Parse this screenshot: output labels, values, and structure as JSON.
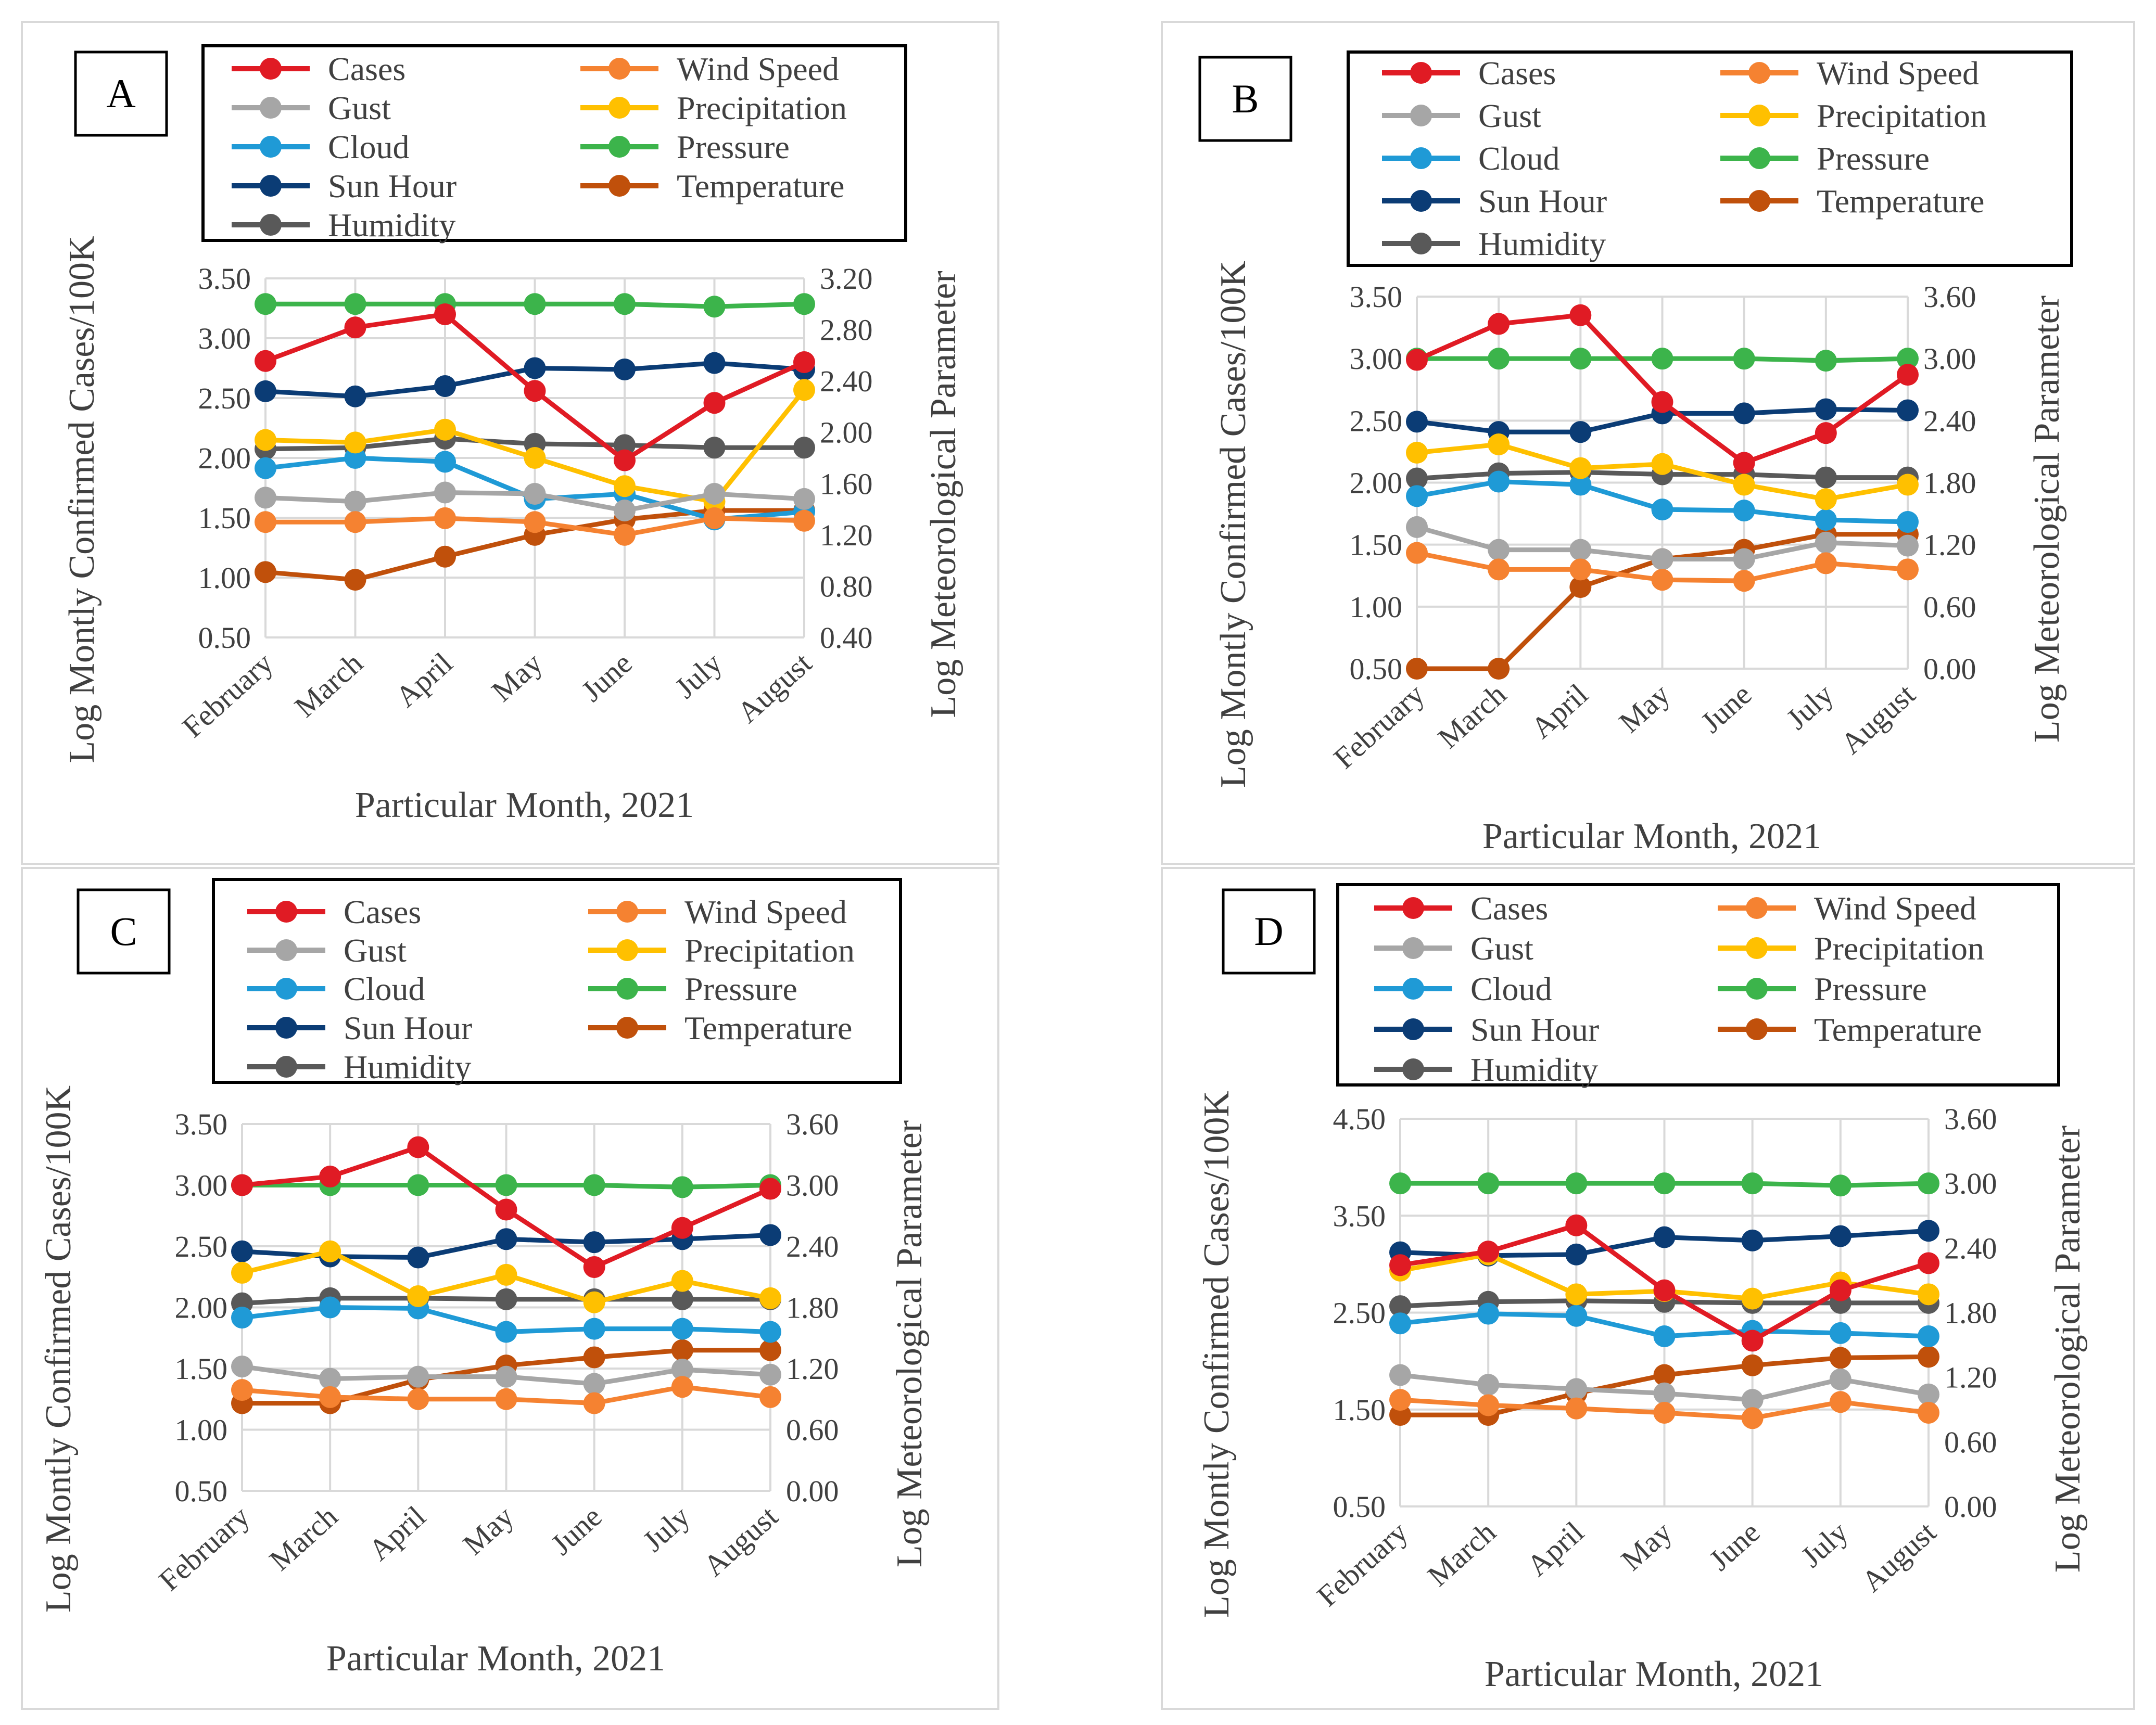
{
  "figure": {
    "panel_labels": [
      "A",
      "B",
      "C",
      "D"
    ]
  },
  "colors": {
    "Cases": "#e01b24",
    "Wind Speed": "#f58231",
    "Gust": "#a6a6a6",
    "Precipitation": "#ffc000",
    "Cloud": "#1f9ad6",
    "Pressure": "#3cb44b",
    "Sun Hour": "#0b3c75",
    "Temperature": "#c0500b",
    "Humidity": "#595959"
  },
  "chart_data": [
    {
      "panel": "A",
      "type": "line",
      "categories": [
        "February",
        "March",
        "April",
        "May",
        "June",
        "July",
        "August"
      ],
      "xlabel": "Particular Month, 2021",
      "ylabel_left": "Log Montly Confirmed Cases/100K",
      "ylabel_right": "Log Meteorological Parameter",
      "ylim_left": [
        0.5,
        3.5
      ],
      "yticks_left": [
        "0.50",
        "1.00",
        "1.50",
        "2.00",
        "2.50",
        "3.00",
        "3.50"
      ],
      "ylim_right": [
        0.4,
        3.2
      ],
      "yticks_right": [
        "0.40",
        "0.80",
        "1.20",
        "1.60",
        "2.00",
        "2.40",
        "2.80",
        "3.20"
      ],
      "legend_order": [
        "Cases",
        "Wind Speed",
        "Gust",
        "Precipitation",
        "Cloud",
        "Pressure",
        "Sun Hour",
        "Temperature",
        "Humidity"
      ],
      "series": [
        {
          "name": "Cases",
          "axis": "left",
          "values": [
            2.81,
            3.09,
            3.2,
            2.56,
            1.98,
            2.46,
            2.8
          ]
        },
        {
          "name": "Wind Speed",
          "axis": "right",
          "values": [
            1.3,
            1.3,
            1.33,
            1.3,
            1.2,
            1.33,
            1.31
          ]
        },
        {
          "name": "Gust",
          "axis": "right",
          "values": [
            1.49,
            1.46,
            1.53,
            1.52,
            1.39,
            1.52,
            1.48
          ]
        },
        {
          "name": "Precipitation",
          "axis": "right",
          "values": [
            1.94,
            1.92,
            2.02,
            1.8,
            1.58,
            1.46,
            2.33
          ]
        },
        {
          "name": "Cloud",
          "axis": "right",
          "values": [
            1.72,
            1.8,
            1.77,
            1.48,
            1.52,
            1.32,
            1.38
          ]
        },
        {
          "name": "Pressure",
          "axis": "right",
          "values": [
            3.0,
            3.0,
            3.0,
            3.0,
            3.0,
            2.98,
            3.0
          ]
        },
        {
          "name": "Sun Hour",
          "axis": "right",
          "values": [
            2.32,
            2.28,
            2.36,
            2.5,
            2.49,
            2.54,
            2.49
          ]
        },
        {
          "name": "Temperature",
          "axis": "right",
          "values": [
            0.91,
            0.85,
            1.03,
            1.2,
            1.32,
            1.39,
            1.39
          ]
        },
        {
          "name": "Humidity",
          "axis": "right",
          "values": [
            1.87,
            1.88,
            1.95,
            1.91,
            1.9,
            1.88,
            1.88
          ]
        }
      ]
    },
    {
      "panel": "B",
      "type": "line",
      "categories": [
        "February",
        "March",
        "April",
        "May",
        "June",
        "July",
        "August"
      ],
      "xlabel": "Particular Month, 2021",
      "ylabel_left": "Log Montly Confirmed Cases/100K",
      "ylabel_right": "Log Meteorological Parameter",
      "ylim_left": [
        0.5,
        3.5
      ],
      "yticks_left": [
        "0.50",
        "1.00",
        "1.50",
        "2.00",
        "2.50",
        "3.00",
        "3.50"
      ],
      "ylim_right": [
        0.0,
        3.6
      ],
      "yticks_right": [
        "0.00",
        "0.60",
        "1.20",
        "1.80",
        "2.40",
        "3.00",
        "3.60"
      ],
      "legend_order": [
        "Cases",
        "Wind Speed",
        "Gust",
        "Precipitation",
        "Cloud",
        "Pressure",
        "Sun Hour",
        "Temperature",
        "Humidity"
      ],
      "series": [
        {
          "name": "Cases",
          "axis": "left",
          "values": [
            2.99,
            3.28,
            3.35,
            2.65,
            2.16,
            2.4,
            2.87
          ]
        },
        {
          "name": "Wind Speed",
          "axis": "right",
          "values": [
            1.12,
            0.96,
            0.96,
            0.86,
            0.85,
            1.02,
            0.96
          ]
        },
        {
          "name": "Gust",
          "axis": "right",
          "values": [
            1.37,
            1.15,
            1.15,
            1.06,
            1.06,
            1.22,
            1.19
          ]
        },
        {
          "name": "Precipitation",
          "axis": "right",
          "values": [
            2.09,
            2.17,
            1.94,
            1.98,
            1.78,
            1.64,
            1.78
          ]
        },
        {
          "name": "Cloud",
          "axis": "right",
          "values": [
            1.67,
            1.81,
            1.78,
            1.54,
            1.53,
            1.44,
            1.42
          ]
        },
        {
          "name": "Pressure",
          "axis": "right",
          "values": [
            3.0,
            3.0,
            3.0,
            3.0,
            3.0,
            2.98,
            3.0
          ]
        },
        {
          "name": "Sun Hour",
          "axis": "right",
          "values": [
            2.39,
            2.29,
            2.29,
            2.47,
            2.47,
            2.51,
            2.5
          ]
        },
        {
          "name": "Temperature",
          "axis": "right",
          "values": [
            0.0,
            0.0,
            0.79,
            1.06,
            1.15,
            1.3,
            1.3
          ]
        },
        {
          "name": "Humidity",
          "axis": "right",
          "values": [
            1.84,
            1.89,
            1.9,
            1.88,
            1.88,
            1.85,
            1.85
          ]
        }
      ]
    },
    {
      "panel": "C",
      "type": "line",
      "categories": [
        "February",
        "March",
        "April",
        "May",
        "June",
        "July",
        "August"
      ],
      "xlabel": "Particular Month, 2021",
      "ylabel_left": "Log Montly Confirmed Cases/100K",
      "ylabel_right": "Log Meteorological Parameter",
      "ylim_left": [
        0.5,
        3.5
      ],
      "yticks_left": [
        "0.50",
        "1.00",
        "1.50",
        "2.00",
        "2.50",
        "3.00",
        "3.50"
      ],
      "ylim_right": [
        0.0,
        3.6
      ],
      "yticks_right": [
        "0.00",
        "0.60",
        "1.20",
        "1.80",
        "2.40",
        "3.00",
        "3.60"
      ],
      "legend_order": [
        "Cases",
        "Wind Speed",
        "Gust",
        "Precipitation",
        "Cloud",
        "Pressure",
        "Sun Hour",
        "Temperature",
        "Humidity"
      ],
      "series": [
        {
          "name": "Cases",
          "axis": "left",
          "values": [
            3.0,
            3.07,
            3.31,
            2.8,
            2.33,
            2.65,
            2.97
          ]
        },
        {
          "name": "Wind Speed",
          "axis": "right",
          "values": [
            0.99,
            0.92,
            0.9,
            0.9,
            0.86,
            1.02,
            0.92
          ]
        },
        {
          "name": "Gust",
          "axis": "right",
          "values": [
            1.22,
            1.1,
            1.12,
            1.12,
            1.05,
            1.19,
            1.14
          ]
        },
        {
          "name": "Precipitation",
          "axis": "right",
          "values": [
            2.14,
            2.35,
            1.91,
            2.12,
            1.85,
            2.06,
            1.89
          ]
        },
        {
          "name": "Cloud",
          "axis": "right",
          "values": [
            1.7,
            1.8,
            1.79,
            1.56,
            1.59,
            1.59,
            1.56
          ]
        },
        {
          "name": "Pressure",
          "axis": "right",
          "values": [
            3.0,
            3.0,
            3.0,
            3.0,
            3.0,
            2.98,
            3.0
          ]
        },
        {
          "name": "Sun Hour",
          "axis": "right",
          "values": [
            2.35,
            2.3,
            2.29,
            2.47,
            2.44,
            2.47,
            2.51
          ]
        },
        {
          "name": "Temperature",
          "axis": "right",
          "values": [
            0.86,
            0.86,
            1.09,
            1.23,
            1.31,
            1.38,
            1.38
          ]
        },
        {
          "name": "Humidity",
          "axis": "right",
          "values": [
            1.84,
            1.89,
            1.89,
            1.88,
            1.88,
            1.88,
            1.88
          ]
        }
      ]
    },
    {
      "panel": "D",
      "type": "line",
      "categories": [
        "February",
        "March",
        "April",
        "May",
        "June",
        "July",
        "August"
      ],
      "xlabel": "Particular Month, 2021",
      "ylabel_left": "Log Montly Confirmed Cases/100K",
      "ylabel_right": "Log Meteorological Parameter",
      "ylim_left": [
        0.5,
        4.5
      ],
      "yticks_left": [
        "0.50",
        "1.50",
        "2.50",
        "3.50",
        "4.50"
      ],
      "ylim_right": [
        0.0,
        3.6
      ],
      "yticks_right": [
        "0.00",
        "0.60",
        "1.20",
        "1.80",
        "2.40",
        "3.00",
        "3.60"
      ],
      "legend_order": [
        "Cases",
        "Wind Speed",
        "Gust",
        "Precipitation",
        "Cloud",
        "Pressure",
        "Sun Hour",
        "Temperature",
        "Humidity"
      ],
      "series": [
        {
          "name": "Cases",
          "axis": "left",
          "values": [
            2.99,
            3.13,
            3.4,
            2.73,
            2.21,
            2.73,
            3.01
          ]
        },
        {
          "name": "Wind Speed",
          "axis": "right",
          "values": [
            0.99,
            0.94,
            0.91,
            0.87,
            0.82,
            0.97,
            0.87
          ]
        },
        {
          "name": "Gust",
          "axis": "right",
          "values": [
            1.22,
            1.13,
            1.09,
            1.05,
            0.99,
            1.18,
            1.04
          ]
        },
        {
          "name": "Precipitation",
          "axis": "right",
          "values": [
            2.19,
            2.34,
            1.97,
            2.0,
            1.93,
            2.08,
            1.97
          ]
        },
        {
          "name": "Cloud",
          "axis": "right",
          "values": [
            1.7,
            1.79,
            1.77,
            1.58,
            1.63,
            1.61,
            1.58
          ]
        },
        {
          "name": "Pressure",
          "axis": "right",
          "values": [
            3.0,
            3.0,
            3.0,
            3.0,
            3.0,
            2.98,
            3.0
          ]
        },
        {
          "name": "Sun Hour",
          "axis": "right",
          "values": [
            2.36,
            2.33,
            2.34,
            2.5,
            2.47,
            2.51,
            2.56
          ]
        },
        {
          "name": "Temperature",
          "axis": "right",
          "values": [
            0.85,
            0.85,
            1.05,
            1.22,
            1.31,
            1.38,
            1.39
          ]
        },
        {
          "name": "Humidity",
          "axis": "right",
          "values": [
            1.86,
            1.9,
            1.91,
            1.9,
            1.89,
            1.89,
            1.89
          ]
        }
      ]
    }
  ]
}
